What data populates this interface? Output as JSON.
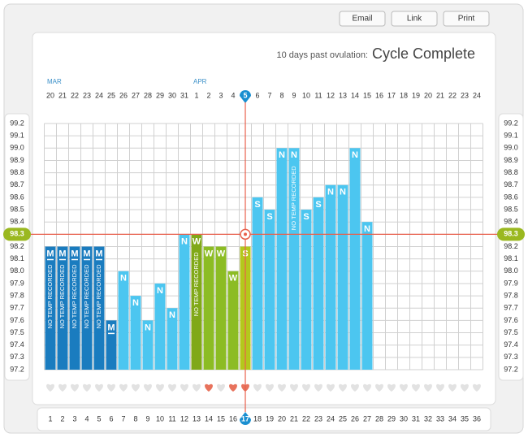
{
  "buttons": [
    "Email",
    "Link",
    "Print"
  ],
  "header": {
    "prefix": "10 days past ovulation:",
    "status": "Cycle Complete"
  },
  "chart_data": {
    "type": "bar",
    "month_labels": [
      "MAR",
      null,
      null,
      null,
      null,
      null,
      null,
      null,
      null,
      null,
      null,
      null,
      "APR",
      null,
      null,
      null,
      null,
      null,
      null,
      null,
      null,
      null,
      null,
      null,
      null,
      null,
      null,
      null,
      null,
      null,
      null,
      null,
      null,
      null,
      null,
      null
    ],
    "dates": [
      20,
      21,
      22,
      23,
      24,
      25,
      26,
      27,
      28,
      29,
      30,
      31,
      1,
      2,
      3,
      4,
      5,
      6,
      7,
      8,
      9,
      10,
      11,
      12,
      13,
      14,
      15,
      16,
      17,
      18,
      19,
      20,
      21,
      22,
      23,
      24
    ],
    "categories": [
      1,
      2,
      3,
      4,
      5,
      6,
      7,
      8,
      9,
      10,
      11,
      12,
      13,
      14,
      15,
      16,
      17,
      18,
      19,
      20,
      21,
      22,
      23,
      24,
      25,
      26,
      27,
      28,
      29,
      30,
      31,
      32,
      33,
      34,
      35,
      36
    ],
    "values": [
      98.2,
      98.2,
      98.2,
      98.2,
      98.2,
      97.6,
      98.0,
      97.8,
      97.6,
      97.9,
      97.7,
      98.3,
      98.3,
      98.2,
      98.2,
      98.0,
      98.2,
      98.6,
      98.5,
      99.0,
      99.0,
      98.5,
      98.6,
      98.7,
      98.7,
      99.0,
      98.4,
      null,
      null,
      null,
      null,
      null,
      null,
      null,
      null,
      null
    ],
    "bar_labels": [
      "M",
      "M",
      "M",
      "M",
      "M",
      "M",
      "N",
      "N",
      "N",
      "N",
      "N",
      "N",
      "W",
      "W",
      "W",
      "W",
      "S",
      "S",
      "S",
      "N",
      "N",
      "S",
      "S",
      "N",
      "N",
      "N",
      "N",
      null,
      null,
      null,
      null,
      null,
      null,
      null,
      null,
      null
    ],
    "notes": [
      "NO TEMP RECORDED",
      "NO TEMP RECORDED",
      "NO TEMP RECORDED",
      "NO TEMP RECORDED",
      "NO TEMP RECORDED",
      null,
      null,
      null,
      null,
      null,
      null,
      null,
      "NO TEMP RECORDED",
      null,
      null,
      null,
      null,
      null,
      null,
      null,
      "NO TEMP RECORDED",
      null,
      null,
      null,
      null,
      null,
      null,
      null,
      null,
      null,
      null,
      null,
      null,
      null,
      null,
      null
    ],
    "colors": [
      "#1a7cbf",
      "#1a7cbf",
      "#1a7cbf",
      "#1a7cbf",
      "#1a7cbf",
      "#1a7cbf",
      "#4cc6f0",
      "#4cc6f0",
      "#4cc6f0",
      "#4cc6f0",
      "#4cc6f0",
      "#4cc6f0",
      "#80a818",
      "#8cbc24",
      "#8cbc24",
      "#8cbc24",
      "#b4c81c",
      "#4cc6f0",
      "#4cc6f0",
      "#4cc6f0",
      "#4cc6f0",
      "#4cc6f0",
      "#4cc6f0",
      "#4cc6f0",
      "#4cc6f0",
      "#4cc6f0",
      "#4cc6f0",
      null,
      null,
      null,
      null,
      null,
      null,
      null,
      null,
      null
    ],
    "hearts": [
      false,
      false,
      false,
      false,
      false,
      false,
      false,
      false,
      false,
      false,
      false,
      false,
      false,
      true,
      false,
      true,
      true,
      false,
      false,
      false,
      false,
      false,
      false,
      false,
      false,
      false,
      false,
      false,
      false,
      false,
      false,
      false,
      false,
      false,
      false,
      false
    ],
    "coverline": 98.3,
    "ovulation_day": 17,
    "ylim": [
      97.2,
      99.2
    ],
    "yticks": [
      97.2,
      97.3,
      97.4,
      97.5,
      97.6,
      97.7,
      97.8,
      97.9,
      {
        "value": 98,
        "label": "98.0"
      },
      98.1,
      98.2,
      98.3,
      98.4,
      98.5,
      98.6,
      98.7,
      98.8,
      98.9,
      {
        "value": 99,
        "label": "99.0"
      },
      99.1,
      99.2
    ],
    "grid": true
  }
}
